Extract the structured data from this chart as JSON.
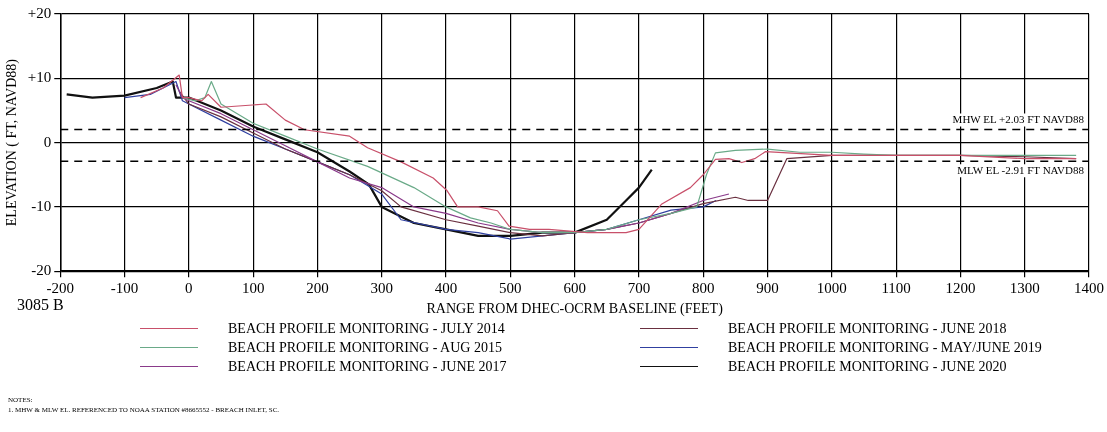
{
  "chart_data": {
    "type": "line",
    "xlabel": "RANGE FROM DHEC-OCRM BASELINE (FEET)",
    "ylabel": "ELEVATION ( FT, NAVD88)",
    "xlim": [
      -200,
      1400
    ],
    "xticks": [
      -200,
      -100,
      0,
      100,
      200,
      300,
      400,
      500,
      600,
      700,
      800,
      900,
      1000,
      1100,
      1200,
      1300,
      1400
    ],
    "ylim": [
      -20,
      20
    ],
    "yticks": [
      {
        "value": 20,
        "label": "+20"
      },
      {
        "value": 10,
        "label": "+10"
      },
      0,
      -10,
      -20
    ],
    "grid": true,
    "legend": "bottom",
    "marker": "none",
    "line_style": "solid",
    "ref_lines": [
      {
        "axis": "y",
        "value": 2.03,
        "label": "MHW EL +2.03 FT NAVD88",
        "color": "#000000",
        "line_style": "dashed"
      },
      {
        "axis": "y",
        "value": -2.91,
        "label": "MLW EL -2.91 FT NAVD88",
        "color": "#000000",
        "line_style": "dashed"
      }
    ],
    "annotations": [
      "3085 B",
      "NOTES:",
      "1. MHW & MLW EL. REFERENCED TO NOAA STATION #8665552 - BREACH INLET, SC."
    ],
    "series": [
      {
        "name": "BEACH PROFILE MONITORING - JULY 2014",
        "color": "#c8506a",
        "x": [
          -75,
          -40,
          -15,
          -10,
          0,
          20,
          30,
          50,
          120,
          150,
          180,
          250,
          278,
          330,
          380,
          401,
          418,
          450,
          480,
          498,
          530,
          560,
          620,
          680,
          700,
          735,
          780,
          800,
          819,
          840,
          860,
          880,
          897,
          1000,
          1100,
          1200,
          1300,
          1380
        ],
        "values": [
          7,
          8.5,
          10.5,
          7,
          7,
          6.5,
          7.5,
          5.5,
          6,
          3.5,
          2,
          1,
          -0.8,
          -3,
          -5.5,
          -7.4,
          -10,
          -10,
          -10.6,
          -13,
          -13.5,
          -13.5,
          -14,
          -14,
          -13.5,
          -9.6,
          -7,
          -5,
          -2.6,
          -2.5,
          -3.1,
          -2.5,
          -1.4,
          -2,
          -2,
          -2,
          -2.5,
          -2.5
        ]
      },
      {
        "name": "BEACH PROFILE MONITORING - AUG 2015",
        "color": "#6aaa88",
        "x": [
          -10,
          10,
          25,
          35,
          50,
          100,
          150,
          200,
          278,
          350,
          400,
          438,
          470,
          500,
          550,
          600,
          650,
          700,
          750,
          790,
          805,
          819,
          850,
          900,
          950,
          1000,
          1050,
          1100,
          1200,
          1300,
          1380
        ],
        "values": [
          7,
          6.5,
          7,
          9.5,
          6,
          3,
          1,
          -1,
          -3.7,
          -7,
          -10,
          -11.7,
          -12.5,
          -13.5,
          -14,
          -14,
          -13.5,
          -12,
          -11,
          -10,
          -5,
          -1.6,
          -1.2,
          -1,
          -1.5,
          -1.5,
          -1.8,
          -2,
          -2,
          -2,
          -2
        ]
      },
      {
        "name": "BEACH PROFILE MONITORING - JUNE 2017",
        "color": "#8a3a8a",
        "x": [
          -20,
          -10,
          0,
          50,
          100,
          150,
          200,
          250,
          300,
          350,
          400,
          450,
          500,
          550,
          600,
          650,
          700,
          750,
          800,
          840
        ],
        "values": [
          9,
          7,
          6.5,
          4.5,
          2,
          -0.5,
          -3,
          -5.5,
          -7,
          -10,
          -11,
          -12.5,
          -13.5,
          -14,
          -14,
          -13.5,
          -12.5,
          -11,
          -9,
          -8
        ]
      },
      {
        "name": "BEACH PROFILE MONITORING - JUNE 2018",
        "color": "#6a3040",
        "x": [
          -15,
          0,
          50,
          100,
          150,
          200,
          250,
          300,
          330,
          400,
          450,
          500,
          550,
          600,
          650,
          700,
          750,
          800,
          850,
          870,
          900,
          930,
          1000,
          1100,
          1200,
          1300,
          1380
        ],
        "values": [
          8,
          6,
          4,
          1.5,
          -1,
          -3,
          -5,
          -7.5,
          -10,
          -12,
          -13,
          -14,
          -14.5,
          -14,
          -13.5,
          -12.5,
          -11,
          -9.5,
          -8.5,
          -9,
          -9,
          -2.5,
          -2,
          -2,
          -2,
          -2.2,
          -2.5
        ]
      },
      {
        "name": "BEACH PROFILE MONITORING - MAY/JUNE 2019",
        "color": "#3040a0",
        "x": [
          -100,
          -60,
          -30,
          -20,
          -10,
          0,
          50,
          100,
          150,
          200,
          250,
          300,
          330,
          400,
          450,
          500,
          550,
          600,
          650,
          700,
          750,
          800,
          820
        ],
        "values": [
          7,
          7.5,
          9,
          9.5,
          6.5,
          6,
          3.5,
          1,
          -1,
          -3,
          -5,
          -8,
          -12,
          -13.5,
          -14,
          -15,
          -14.5,
          -14,
          -13.5,
          -12,
          -10.5,
          -10,
          -9
        ]
      },
      {
        "name": "BEACH PROFILE MONITORING - JUNE 2020",
        "color": "#111111",
        "x": [
          -190,
          -150,
          -100,
          -50,
          -25,
          -20,
          0,
          50,
          100,
          150,
          200,
          250,
          280,
          300,
          350,
          400,
          450,
          500,
          550,
          600,
          650,
          680,
          700,
          720
        ],
        "values": [
          7.5,
          7,
          7.3,
          8.5,
          9.5,
          7,
          7,
          5,
          2.5,
          0.5,
          -1.5,
          -4.5,
          -6.5,
          -10,
          -12.5,
          -13.5,
          -14.5,
          -14.5,
          -14,
          -14,
          -12,
          -9,
          -7,
          -4.2
        ]
      }
    ]
  }
}
